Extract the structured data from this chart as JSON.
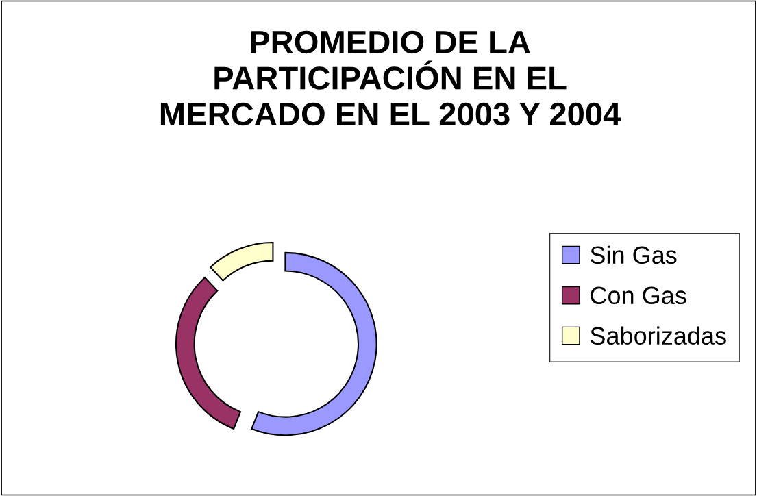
{
  "chart_data": {
    "type": "donut",
    "title": "PROMEDIO DE LA\nPARTICIPACIÓN EN EL\nMERCADO EN EL 2003 Y 2004",
    "categories": [
      "Sin Gas",
      "Con Gas",
      "Saborizadas"
    ],
    "values": [
      56,
      32,
      12
    ],
    "colors": [
      "#9999ff",
      "#993366",
      "#ffffcc"
    ],
    "legend": "right"
  }
}
